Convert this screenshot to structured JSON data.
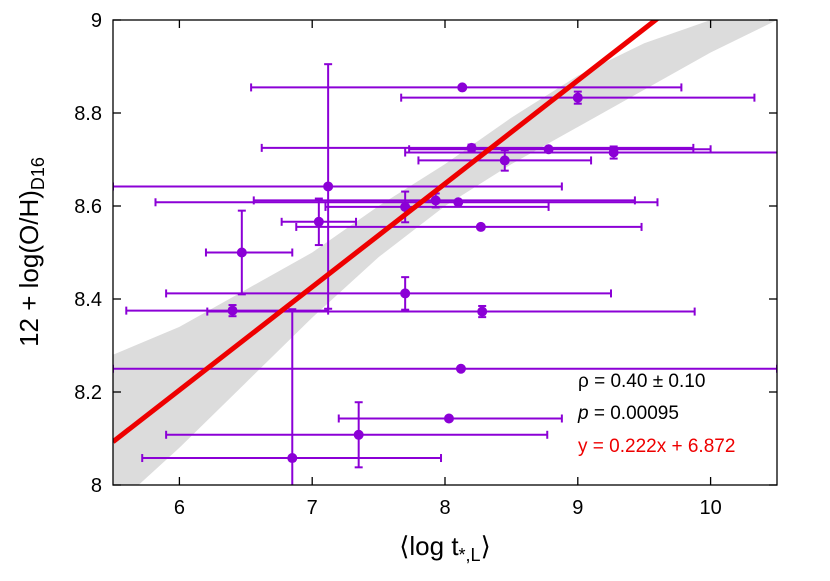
{
  "chart_data": {
    "type": "scatter",
    "xlabel": "⟨log t",
    "xlabel_sub": "*,L",
    "xlabel_close": "⟩",
    "ylabel": "12 + log(O/H)",
    "ylabel_sub": "D16",
    "xlim": [
      5.5,
      10.5
    ],
    "ylim": [
      8.0,
      9.0
    ],
    "x_ticks": [
      6,
      7,
      8,
      9,
      10
    ],
    "y_ticks": [
      8.0,
      8.2,
      8.4,
      8.6,
      8.8,
      9.0
    ],
    "x_tick_labels": [
      "6",
      "7",
      "8",
      "9",
      "10"
    ],
    "y_tick_labels": [
      "8",
      "8.2",
      "8.4",
      "8.6",
      "8.8",
      "9"
    ],
    "grid": false,
    "legend": "none",
    "colors": {
      "points": "#8b00d6",
      "fit_line": "#ee0000",
      "band": "#dcdcdc",
      "text": "#000000"
    },
    "points": [
      {
        "x": 8.13,
        "y": 8.855,
        "xerr": [
          1.59,
          1.65
        ],
        "yerr": [
          0,
          0
        ]
      },
      {
        "x": 9.0,
        "y": 8.833,
        "xerr": [
          1.33,
          1.33
        ],
        "yerr": [
          0.013,
          0.013
        ]
      },
      {
        "x": 8.2,
        "y": 8.725,
        "xerr": [
          1.58,
          1.67
        ],
        "yerr": [
          0.007,
          0.007
        ]
      },
      {
        "x": 8.78,
        "y": 8.722,
        "xerr": [
          1.05,
          1.22
        ],
        "yerr": [
          0,
          0
        ]
      },
      {
        "x": 9.27,
        "y": 8.715,
        "xerr": [
          1.57,
          1.53
        ],
        "yerr": [
          0.013,
          0.013
        ]
      },
      {
        "x": 8.45,
        "y": 8.698,
        "xerr": [
          0.65,
          0.65
        ],
        "yerr": [
          0.022,
          0.022
        ]
      },
      {
        "x": 7.12,
        "y": 8.642,
        "xerr": [
          1.62,
          1.76
        ],
        "yerr": [
          0.263,
          0.263
        ]
      },
      {
        "x": 7.93,
        "y": 8.612,
        "xerr": [
          1.37,
          1.5
        ],
        "yerr": [
          0.015,
          0.015
        ]
      },
      {
        "x": 8.1,
        "y": 8.608,
        "xerr": [
          2.28,
          1.5
        ],
        "yerr": [
          0,
          0
        ]
      },
      {
        "x": 7.7,
        "y": 8.598,
        "xerr": [
          0.6,
          1.08
        ],
        "yerr": [
          0.033,
          0.033
        ]
      },
      {
        "x": 7.05,
        "y": 8.566,
        "xerr": [
          0.28,
          0.28
        ],
        "yerr": [
          0.05,
          0.05
        ]
      },
      {
        "x": 8.27,
        "y": 8.555,
        "xerr": [
          1.39,
          1.21
        ],
        "yerr": [
          0,
          0
        ]
      },
      {
        "x": 6.47,
        "y": 8.5,
        "xerr": [
          0.27,
          0.38
        ],
        "yerr": [
          0.09,
          0.09
        ]
      },
      {
        "x": 7.7,
        "y": 8.412,
        "xerr": [
          1.8,
          1.55
        ],
        "yerr": [
          0.035,
          0.035
        ]
      },
      {
        "x": 6.4,
        "y": 8.375,
        "xerr": [
          0.8,
          0.72
        ],
        "yerr": [
          0.012,
          0.012
        ]
      },
      {
        "x": 8.28,
        "y": 8.373,
        "xerr": [
          2.07,
          1.6
        ],
        "yerr": [
          0.012,
          0.012
        ]
      },
      {
        "x": 8.12,
        "y": 8.25,
        "xerr": [
          2.62,
          2.38
        ],
        "yerr": [
          0,
          0
        ]
      },
      {
        "x": 8.03,
        "y": 8.143,
        "xerr": [
          0.83,
          0.85
        ],
        "yerr": [
          0,
          0
        ]
      },
      {
        "x": 7.35,
        "y": 8.108,
        "xerr": [
          1.45,
          1.42
        ],
        "yerr": [
          0.07,
          0.07
        ]
      },
      {
        "x": 6.85,
        "y": 8.058,
        "xerr": [
          1.13,
          1.12
        ],
        "yerr": [
          0.32,
          0.32
        ]
      }
    ],
    "fit": {
      "slope": 0.222,
      "intercept": 6.872
    },
    "confidence_band": {
      "x": [
        5.5,
        6.0,
        6.5,
        7.0,
        7.5,
        8.0,
        8.5,
        9.0,
        9.5,
        10.0,
        10.5
      ],
      "lower": [
        7.95,
        8.08,
        8.22,
        8.36,
        8.49,
        8.6,
        8.69,
        8.77,
        8.85,
        8.93,
        9.0
      ],
      "upper": [
        8.28,
        8.34,
        8.42,
        8.5,
        8.6,
        8.69,
        8.79,
        8.88,
        8.95,
        9.0,
        9.0
      ]
    },
    "annotations": {
      "rho": "ρ = 0.40 ± 0.10",
      "p_label": "p",
      "p_value": " = 0.00095",
      "fit_equation": "y = 0.222x + 6.872"
    }
  }
}
